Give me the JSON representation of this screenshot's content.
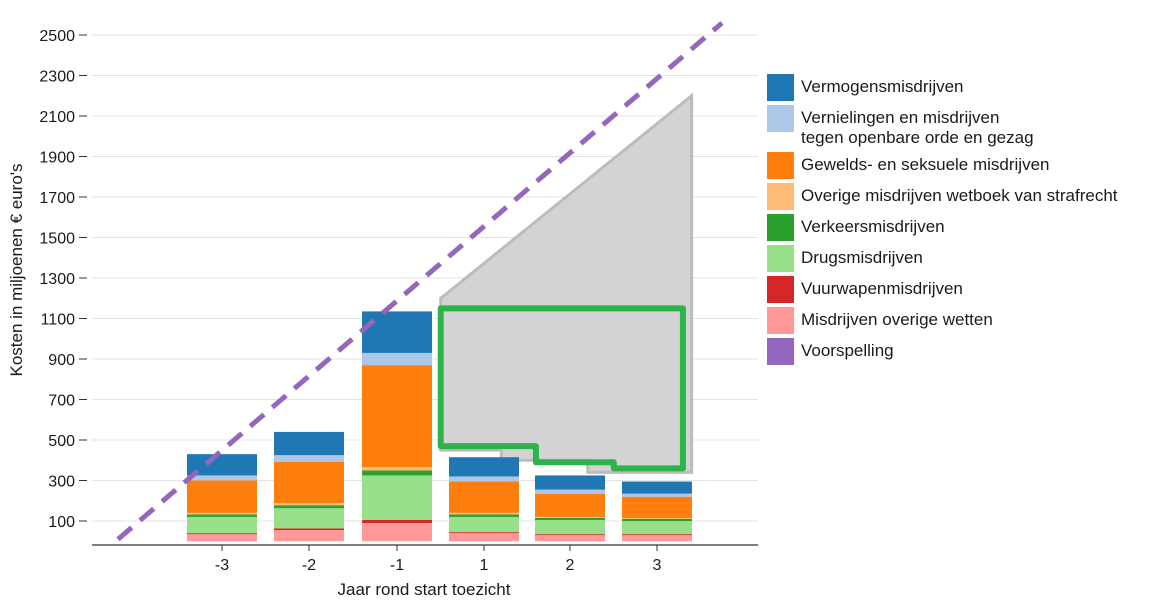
{
  "chart_data": {
    "type": "bar",
    "stacked": true,
    "categories": [
      "-3",
      "-2",
      "-1",
      "1",
      "2",
      "3"
    ],
    "xlabel": "Jaar rond start toezicht",
    "ylabel": "Kosten in miljoenen € euro's",
    "ylim": [
      -130,
      2550
    ],
    "yticks": [
      100,
      300,
      500,
      700,
      900,
      1100,
      1300,
      1500,
      1700,
      1900,
      2100,
      2300,
      2500
    ],
    "grid": true,
    "legend_position": "right",
    "series": [
      {
        "name": "Misdrijven overige wetten",
        "color": "#ff9896",
        "values": [
          35,
          55,
          90,
          40,
          30,
          30
        ]
      },
      {
        "name": "Vuurwapenmisdrijven",
        "color": "#d62728",
        "values": [
          5,
          8,
          15,
          5,
          5,
          5
        ]
      },
      {
        "name": "Drugsmisdrijven",
        "color": "#98df8a",
        "values": [
          80,
          100,
          220,
          75,
          70,
          65
        ]
      },
      {
        "name": "Verkeersmisdrijven",
        "color": "#2ca02c",
        "values": [
          12,
          15,
          25,
          12,
          10,
          10
        ]
      },
      {
        "name": "Overige misdrijven wetboek van strafrecht",
        "color": "#ffbb78",
        "values": [
          8,
          10,
          15,
          8,
          5,
          5
        ]
      },
      {
        "name": "Gewelds- en seksuele misdrijven",
        "color": "#ff7f0e",
        "values": [
          160,
          205,
          505,
          155,
          115,
          105
        ]
      },
      {
        "name": "Vernielingen en misdrijven\ntegen openbare orde en gezag",
        "color": "#aec7e8",
        "values": [
          25,
          32,
          60,
          25,
          20,
          15
        ]
      },
      {
        "name": "Vermogensmisdrijven",
        "color": "#1f77b4",
        "values": [
          105,
          115,
          205,
          95,
          70,
          60
        ]
      }
    ],
    "legend_order": [
      7,
      6,
      5,
      4,
      3,
      2,
      1,
      0,
      8
    ],
    "forecast": {
      "name": "Voorspelling",
      "color": "#9467bd",
      "x": [
        -4.25,
        3.75
      ],
      "y": [
        0,
        2450
      ]
    },
    "annotations": {
      "gray_area": {
        "color": "#d3d3d3",
        "points": [
          [
            0.5,
            1200
          ],
          [
            3.4,
            2200
          ],
          [
            3.4,
            340
          ],
          [
            2.2,
            340
          ],
          [
            2.2,
            400
          ],
          [
            1.2,
            400
          ],
          [
            1.2,
            450
          ],
          [
            0.5,
            450
          ]
        ]
      },
      "green_outline": {
        "color": "#2eb24a",
        "points": [
          [
            0.5,
            1150
          ],
          [
            3.3,
            1150
          ],
          [
            3.3,
            360
          ],
          [
            2.5,
            360
          ],
          [
            2.5,
            390
          ],
          [
            1.6,
            390
          ],
          [
            1.6,
            470
          ],
          [
            0.5,
            470
          ]
        ]
      }
    }
  }
}
